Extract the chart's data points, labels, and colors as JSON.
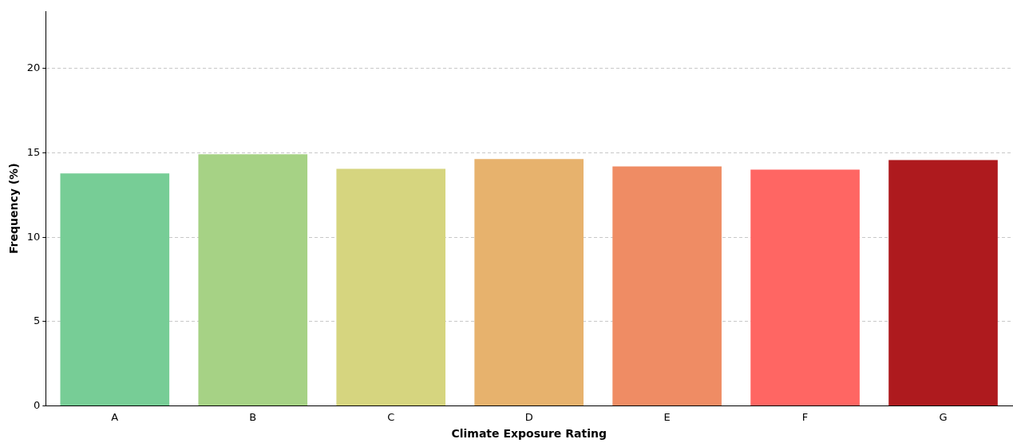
{
  "chart_data": {
    "type": "bar",
    "xlabel": "Climate Exposure Rating",
    "ylabel": "Frequency (%)",
    "categories": [
      "A",
      "B",
      "C",
      "D",
      "E",
      "F",
      "G"
    ],
    "values": [
      13.78,
      14.92,
      14.06,
      14.63,
      14.2,
      14.01,
      14.58
    ],
    "colors": [
      "#77cd96",
      "#a6d285",
      "#d6d57f",
      "#e7b26d",
      "#ef8c64",
      "#ff6663",
      "#ae1a1e"
    ],
    "ylim": [
      0,
      23.4
    ],
    "yticks": [
      0,
      5,
      10,
      15,
      20
    ],
    "grid": "y"
  }
}
